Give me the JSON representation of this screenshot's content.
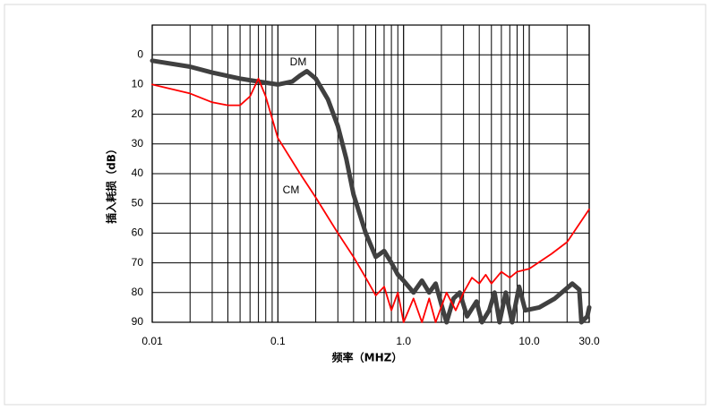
{
  "chart_data": {
    "type": "line",
    "x_label": "频率（MHZ）",
    "y_label": "插入耗损（dB）",
    "x_log": true,
    "y_inverted": true,
    "grid": true,
    "xlim": [
      0.01,
      30
    ],
    "xticks": [
      0.01,
      0.1,
      {
        "value": 1,
        "label": "1.0"
      },
      {
        "value": 10,
        "label": "10.0"
      },
      {
        "value": 30,
        "label": "30.0"
      }
    ],
    "minor_xticks": [
      0.02,
      0.03,
      0.04,
      0.05,
      0.06,
      0.07,
      0.08,
      0.09,
      0.2,
      0.3,
      0.4,
      0.5,
      0.6,
      0.7,
      0.8,
      0.9,
      2,
      3,
      4,
      5,
      6,
      7,
      8,
      9,
      20
    ],
    "ylim": [
      -10,
      90
    ],
    "yticks": [
      0,
      10,
      20,
      30,
      40,
      50,
      60,
      70,
      80,
      90
    ],
    "series": [
      {
        "name": "DM",
        "color": "#404040",
        "x": [
          0.01,
          0.02,
          0.03,
          0.05,
          0.07,
          0.1,
          0.13,
          0.15,
          0.17,
          0.2,
          0.25,
          0.3,
          0.35,
          0.4,
          0.5,
          0.6,
          0.7,
          0.8,
          0.9,
          1.0,
          1.2,
          1.4,
          1.6,
          1.8,
          2.0,
          2.2,
          2.5,
          2.8,
          3.2,
          3.8,
          4.2,
          4.8,
          5.3,
          5.8,
          6.5,
          7.3,
          8.3,
          9.3,
          12,
          16,
          22,
          25,
          26,
          29,
          30
        ],
        "values": [
          2,
          4,
          6,
          8,
          9,
          10,
          9,
          7,
          5.5,
          8,
          15,
          24,
          35,
          47,
          60,
          68,
          66,
          70,
          74,
          76,
          80,
          76,
          80,
          77,
          84,
          90,
          82,
          80,
          88,
          83,
          90,
          86,
          80,
          90,
          80,
          90,
          78,
          86,
          85,
          82,
          77,
          79,
          90,
          88,
          85
        ]
      },
      {
        "name": "CM",
        "color": "#ff0000",
        "x": [
          0.01,
          0.02,
          0.03,
          0.04,
          0.05,
          0.06,
          0.07,
          0.08,
          0.1,
          0.15,
          0.2,
          0.3,
          0.4,
          0.5,
          0.6,
          0.7,
          0.8,
          0.9,
          1.0,
          1.2,
          1.4,
          1.6,
          1.8,
          2.2,
          2.6,
          3.0,
          3.5,
          4.0,
          4.5,
          5.0,
          6.0,
          7.0,
          8.0,
          10,
          15,
          20,
          30
        ],
        "values": [
          10,
          13,
          16,
          17,
          17,
          14,
          8,
          14,
          28,
          40,
          48,
          60,
          68,
          75,
          81,
          78,
          86,
          80,
          90,
          82,
          90,
          82,
          90,
          80,
          86,
          80,
          75,
          77,
          74,
          77,
          73,
          75,
          73,
          72,
          67,
          63,
          52
        ]
      }
    ]
  }
}
